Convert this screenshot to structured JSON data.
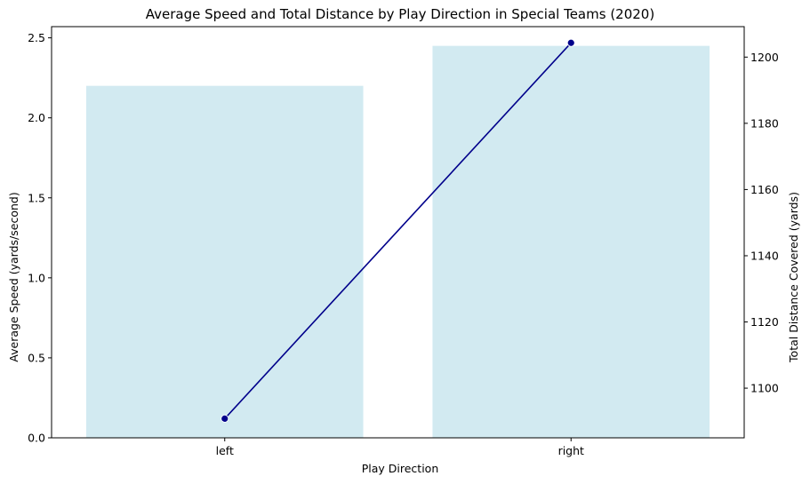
{
  "chart_data": {
    "type": "bar",
    "title": "Average Speed and Total Distance by Play Direction in Special Teams (2020)",
    "xlabel": "Play Direction",
    "ylabel": "Average Speed (yards/second)",
    "y2label": "Total Distance Covered (yards)",
    "categories": [
      "left",
      "right"
    ],
    "series": [
      {
        "type": "bar",
        "axis": "left",
        "values": [
          2.2,
          2.45
        ]
      },
      {
        "type": "line",
        "axis": "right",
        "values": [
          1090.8,
          1204.3
        ]
      }
    ],
    "ylim": [
      0,
      2.57
    ],
    "y2lim": [
      1085.0,
      1209.2
    ],
    "yticks": [
      0.0,
      0.5,
      1.0,
      1.5,
      2.0,
      2.5
    ],
    "y2ticks": [
      1100,
      1120,
      1140,
      1160,
      1180,
      1200
    ],
    "colors": {
      "bar": "#add8e6",
      "bar_opacity": 0.55,
      "line": "#00008b"
    },
    "grid": false,
    "legend": "none"
  }
}
